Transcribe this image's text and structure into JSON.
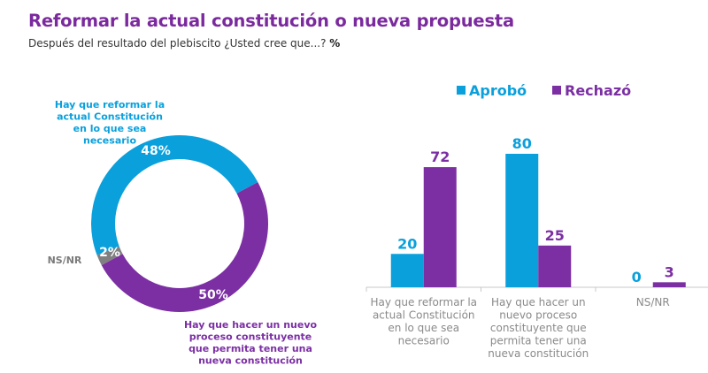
{
  "header": {
    "title": "Reformar la actual constitución o nueva propuesta",
    "subtitle": "Después del resultado del plebiscito ¿Usted cree que...?",
    "subtitle_unit": "%"
  },
  "colors": {
    "aprobo": "#0aa0dc",
    "rechazo": "#7b2fa3",
    "nsnr": "#808080",
    "title": "#7b2a9e"
  },
  "chart_data": [
    {
      "type": "pie",
      "variant": "donut",
      "title": "",
      "unit": "%",
      "slices": [
        {
          "name": "Hay que reformar la actual Constitución en lo que sea necesario",
          "label_lines": [
            "Hay que reformar la",
            "actual Constitución",
            "en lo que sea",
            "necesario"
          ],
          "value": 48,
          "value_label": "48%",
          "color": "#0aa0dc"
        },
        {
          "name": "Hay que hacer un nuevo proceso constituyente que permita tener una nueva constitución",
          "label_lines": [
            "Hay que hacer un nuevo",
            "proceso constituyente",
            "que permita tener una",
            "nueva constitución"
          ],
          "value": 50,
          "value_label": "50%",
          "color": "#7b2fa3"
        },
        {
          "name": "NS/NR",
          "label_lines": [
            "NS/NR"
          ],
          "value": 2,
          "value_label": "2%",
          "color": "#808080"
        }
      ]
    },
    {
      "type": "bar",
      "title": "",
      "xlabel": "",
      "ylabel": "",
      "ylim": [
        0,
        80
      ],
      "grid": false,
      "legend": "top",
      "categories": [
        [
          "Hay que reformar la",
          "actual Constitución",
          "en lo que sea",
          "necesario"
        ],
        [
          "Hay que hacer un",
          "nuevo proceso",
          "constituyente que",
          "permita tener una",
          "nueva constitución"
        ],
        [
          "NS/NR"
        ]
      ],
      "series": [
        {
          "name": "Aprobó",
          "color": "#0aa0dc",
          "values": [
            20,
            80,
            0
          ]
        },
        {
          "name": "Rechazó",
          "color": "#7b2fa3",
          "values": [
            72,
            25,
            3
          ]
        }
      ]
    }
  ]
}
